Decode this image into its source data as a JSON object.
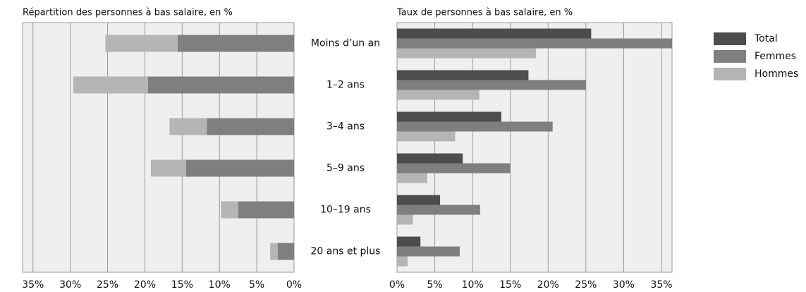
{
  "chart_data": [
    {
      "type": "stacked-bar-left",
      "title": "Répartition des personnes à bas salaire, en %",
      "categories": [
        "Moins d’un an",
        "1–2 ans",
        "3–4 ans",
        "5–9 ans",
        "10–19 ans",
        "20 ans et plus"
      ],
      "series": [
        {
          "color": "#7f7f7f",
          "values": [
            15.6,
            19.6,
            11.7,
            14.5,
            7.5,
            2.2
          ]
        },
        {
          "color": "#b5b5b5",
          "values": [
            9.7,
            10.0,
            5.0,
            4.7,
            2.3,
            1.0
          ]
        }
      ],
      "xlim": [
        0,
        36.4
      ],
      "xticks": [
        {
          "value": 35,
          "label": "35%"
        },
        {
          "value": 30,
          "label": "30%"
        },
        {
          "value": 25,
          "label": "25%"
        },
        {
          "value": 20,
          "label": "20%"
        },
        {
          "value": 15,
          "label": "15%"
        },
        {
          "value": 10,
          "label": "10%"
        },
        {
          "value": 5,
          "label": "5%"
        },
        {
          "value": 0,
          "label": "0%"
        }
      ],
      "grid": true
    },
    {
      "type": "grouped-bar",
      "title": "Taux de personnes à bas salaire, en %",
      "series": [
        {
          "name": "Total",
          "color": "#4d4d4d",
          "values": [
            25.7,
            17.4,
            13.8,
            8.7,
            5.7,
            3.1
          ]
        },
        {
          "name": "Femmes",
          "color": "#7f7f7f",
          "values": [
            36.4,
            25.0,
            20.6,
            15.0,
            11.0,
            8.3
          ]
        },
        {
          "name": "Hommes",
          "color": "#b5b5b5",
          "values": [
            18.4,
            10.9,
            7.7,
            4.0,
            2.1,
            1.4
          ]
        }
      ],
      "xlim": [
        0,
        36.4
      ],
      "xticks": [
        {
          "value": 0,
          "label": "0%"
        },
        {
          "value": 5,
          "label": "5%"
        },
        {
          "value": 10,
          "label": "10%"
        },
        {
          "value": 15,
          "label": "15%"
        },
        {
          "value": 20,
          "label": "20%"
        },
        {
          "value": 25,
          "label": "25%"
        },
        {
          "value": 30,
          "label": "30%"
        },
        {
          "value": 35,
          "label": "35%"
        }
      ],
      "grid": true,
      "legend": "right"
    }
  ]
}
